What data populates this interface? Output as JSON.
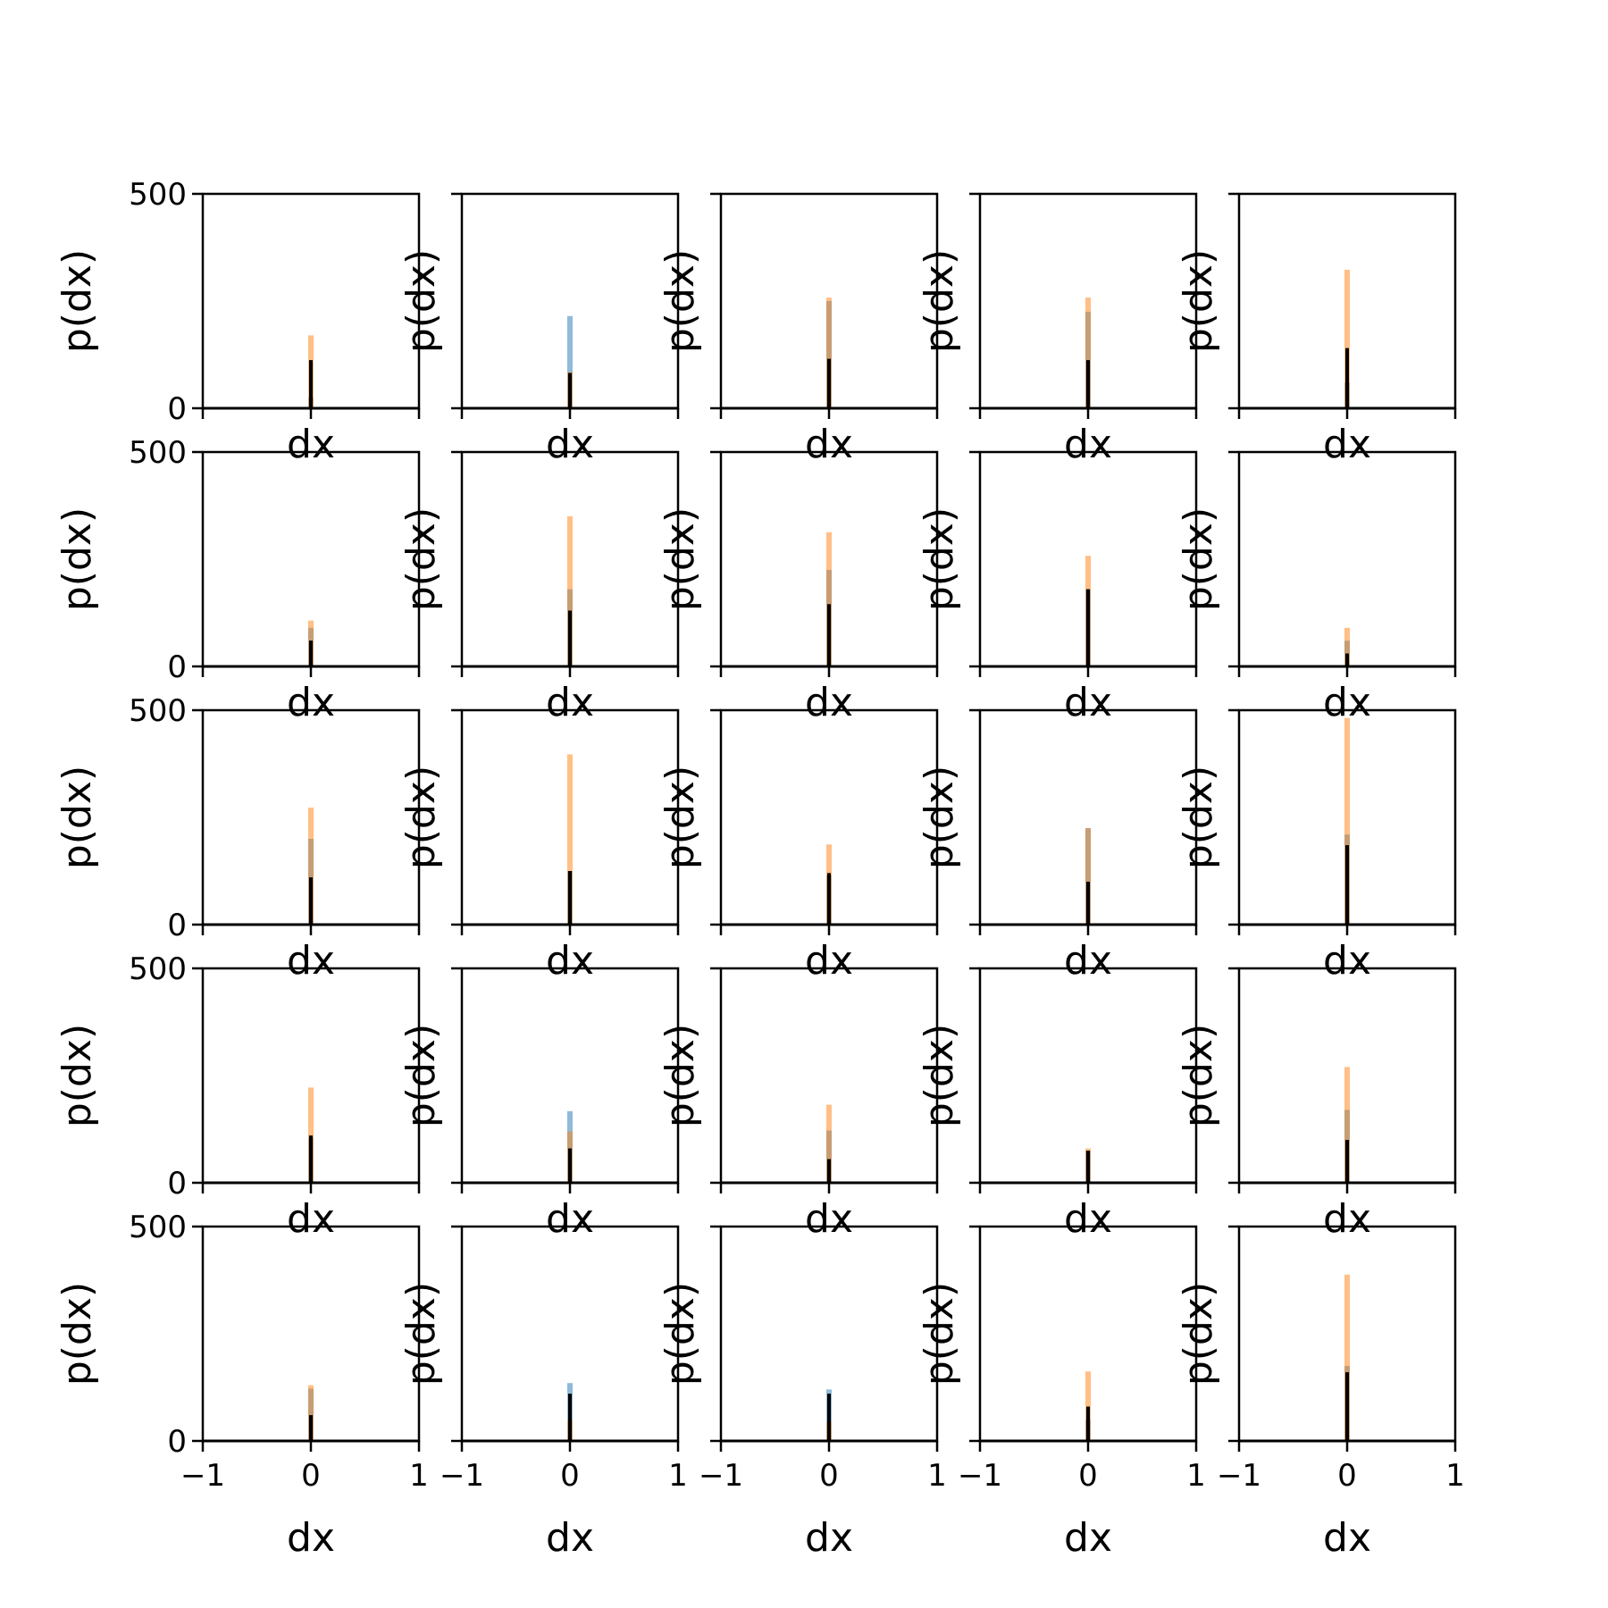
{
  "chart_data": {
    "type": "bar",
    "layout": "grid",
    "rows": 5,
    "cols": 5,
    "xlabel": "dx",
    "ylabel": "p(dx)",
    "xlim": [
      -1,
      1
    ],
    "ylim": [
      0,
      500
    ],
    "xticks": [
      "−1",
      "0",
      "1"
    ],
    "yticks": [
      "0",
      "500"
    ],
    "series_colors": [
      "#1f77b4",
      "#ff7f0e",
      "#000000"
    ],
    "panels": [
      {
        "peaks": [
          25,
          170,
          112
        ]
      },
      {
        "peaks": [
          215,
          85,
          82
        ]
      },
      {
        "peaks": [
          250,
          258,
          115
        ]
      },
      {
        "peaks": [
          225,
          258,
          112
        ]
      },
      {
        "peaks": [
          60,
          323,
          140
        ]
      },
      {
        "peaks": [
          90,
          107,
          60
        ]
      },
      {
        "peaks": [
          180,
          350,
          130
        ]
      },
      {
        "peaks": [
          225,
          313,
          145
        ]
      },
      {
        "peaks": [
          180,
          258,
          180
        ]
      },
      {
        "peaks": [
          60,
          90,
          30
        ]
      },
      {
        "peaks": [
          200,
          273,
          110
        ]
      },
      {
        "peaks": [
          125,
          397,
          125
        ]
      },
      {
        "peaks": [
          115,
          187,
          120
        ]
      },
      {
        "peaks": [
          225,
          225,
          100
        ]
      },
      {
        "peaks": [
          210,
          482,
          185
        ]
      },
      {
        "peaks": [
          105,
          222,
          110
        ]
      },
      {
        "peaks": [
          167,
          120,
          80
        ]
      },
      {
        "peaks": [
          122,
          182,
          55
        ]
      },
      {
        "peaks": [
          75,
          80,
          75
        ]
      },
      {
        "peaks": [
          170,
          270,
          100
        ]
      },
      {
        "peaks": [
          122,
          130,
          60
        ]
      },
      {
        "peaks": [
          135,
          50,
          110
        ]
      },
      {
        "peaks": [
          120,
          45,
          110
        ]
      },
      {
        "peaks": [
          50,
          162,
          80
        ]
      },
      {
        "peaks": [
          175,
          388,
          160
        ]
      }
    ]
  }
}
